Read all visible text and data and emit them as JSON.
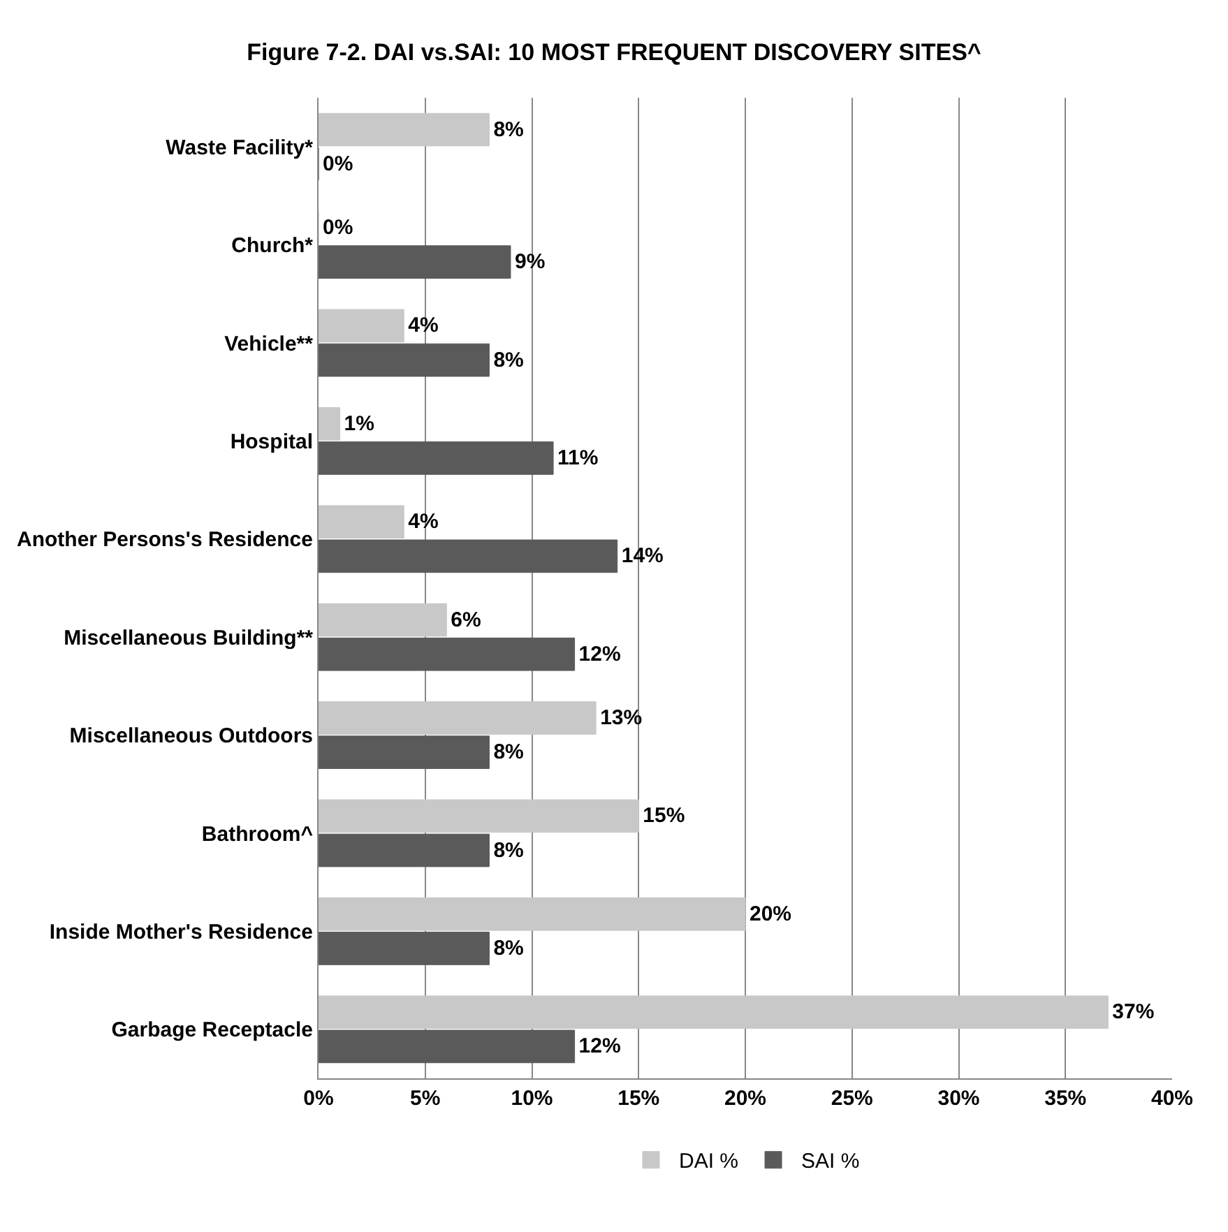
{
  "chart_data": {
    "type": "bar",
    "orientation": "horizontal",
    "title": "Figure 7-2. DAI vs.SAI: 10 MOST FREQUENT DISCOVERY SITES^",
    "categories": [
      "Waste Facility*",
      "Church*",
      "Vehicle**",
      "Hospital",
      "Another Persons's Residence",
      "Miscellaneous Building**",
      "Miscellaneous Outdoors",
      "Bathroom^",
      "Inside Mother's Residence",
      "Garbage Receptacle"
    ],
    "series": [
      {
        "name": "DAI %",
        "color": "#c8c8c8",
        "values": [
          8,
          0,
          4,
          1,
          4,
          6,
          13,
          15,
          20,
          37
        ],
        "value_labels": [
          "8%",
          "0%",
          "4%",
          "1%",
          "4%",
          "6%",
          "13%",
          "15%",
          "20%",
          "37%"
        ]
      },
      {
        "name": "SAI %",
        "color": "#5a5a5a",
        "values": [
          0,
          9,
          8,
          11,
          14,
          12,
          8,
          8,
          8,
          12
        ],
        "value_labels": [
          "0%",
          "9%",
          "8%",
          "11%",
          "14%",
          "12%",
          "8%",
          "8%",
          "8%",
          "12%"
        ]
      }
    ],
    "xlim": [
      0,
      40
    ],
    "xticks": [
      {
        "value": 0,
        "label": "0%"
      },
      {
        "value": 5,
        "label": "5%"
      },
      {
        "value": 10,
        "label": "10%"
      },
      {
        "value": 15,
        "label": "15%"
      },
      {
        "value": 20,
        "label": "20%"
      },
      {
        "value": 25,
        "label": "25%"
      },
      {
        "value": 30,
        "label": "30%"
      },
      {
        "value": 35,
        "label": "35%"
      },
      {
        "value": 40,
        "label": "40%"
      }
    ],
    "grid": "x",
    "legend": "bottom"
  }
}
